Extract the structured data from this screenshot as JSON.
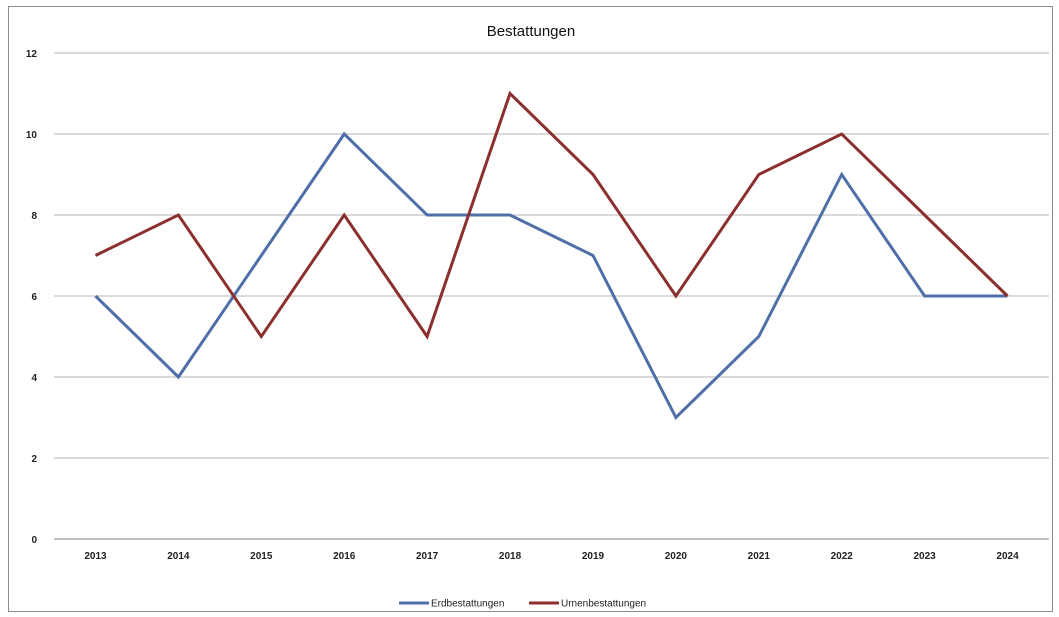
{
  "chart_data": {
    "type": "line",
    "title": "Bestattungen",
    "xlabel": "",
    "ylabel": "",
    "categories": [
      "2013",
      "2014",
      "2015",
      "2016",
      "2017",
      "2018",
      "2019",
      "2020",
      "2021",
      "2022",
      "2023",
      "2024"
    ],
    "ylim": [
      0,
      12
    ],
    "yticks": [
      0,
      2,
      4,
      6,
      8,
      10,
      12
    ],
    "grid": true,
    "legend_position": "bottom",
    "series": [
      {
        "name": "Erdbestattungen",
        "color": "#4f6fa8",
        "values": [
          6,
          4,
          7,
          10,
          8,
          8,
          7,
          3,
          5,
          9,
          6,
          6
        ]
      },
      {
        "name": "Urnenbestattungen",
        "color": "#8b2f2f",
        "values": [
          7,
          8,
          5,
          8,
          5,
          11,
          9,
          6,
          9,
          10,
          8,
          6
        ]
      }
    ]
  }
}
